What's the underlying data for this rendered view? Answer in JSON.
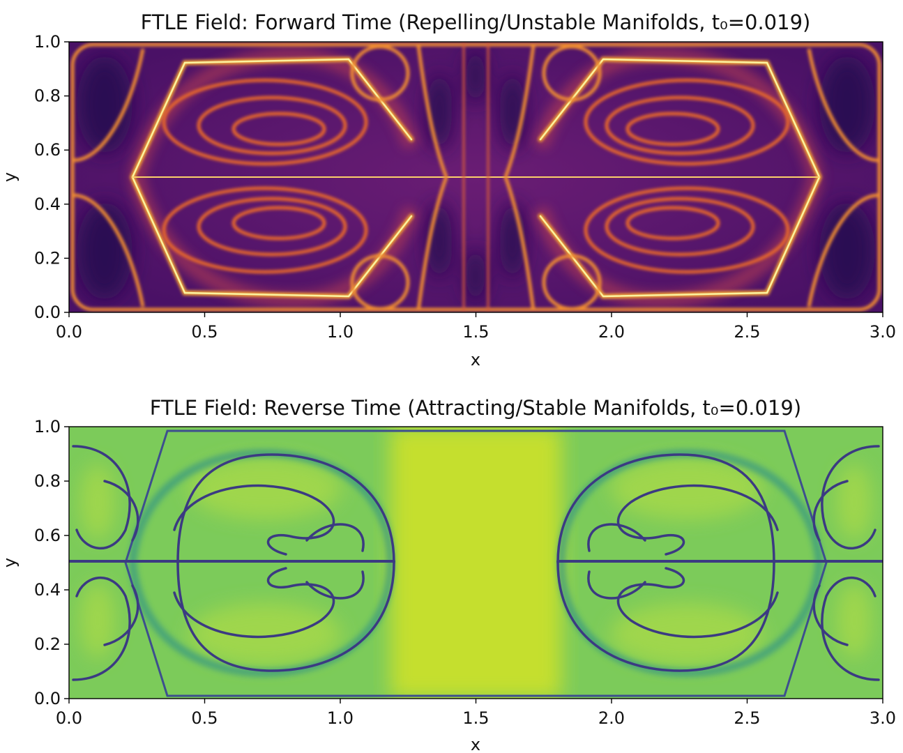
{
  "chart_data": [
    {
      "type": "heatmap",
      "title": "FTLE Field: Forward Time (Repelling/Unstable Manifolds, t₀=0.019)",
      "xlabel": "x",
      "ylabel": "y",
      "xlim": [
        0.0,
        3.0
      ],
      "ylim": [
        0.0,
        1.0
      ],
      "xticks": [
        "0.0",
        "0.5",
        "1.0",
        "1.5",
        "2.0",
        "2.5",
        "3.0"
      ],
      "yticks": [
        "0.0",
        "0.2",
        "0.4",
        "0.6",
        "0.8",
        "1.0"
      ],
      "colormap": "inferno",
      "colors": {
        "low": "#3b0f6f",
        "mid": "#c73e4c",
        "high": "#fcffa4"
      },
      "features": {
        "centerline_y": 0.5,
        "domain_boundary_curves": [
          0.25,
          2.75
        ],
        "vortex_centers": [
          [
            0.7,
            0.62
          ],
          [
            0.7,
            0.36
          ],
          [
            2.3,
            0.62
          ],
          [
            2.3,
            0.36
          ]
        ],
        "small_cells": [
          [
            1.15,
            0.88
          ],
          [
            1.15,
            0.12
          ],
          [
            1.85,
            0.88
          ],
          [
            1.85,
            0.12
          ],
          [
            1.38,
            0.88
          ],
          [
            1.62,
            0.88
          ],
          [
            1.38,
            0.12
          ],
          [
            1.62,
            0.12
          ]
        ]
      }
    },
    {
      "type": "heatmap",
      "title": "FTLE Field: Reverse Time (Attracting/Stable Manifolds, t₀=0.019)",
      "xlabel": "x",
      "ylabel": "y",
      "xlim": [
        0.0,
        3.0
      ],
      "ylim": [
        0.0,
        1.0
      ],
      "xticks": [
        "0.0",
        "0.5",
        "1.0",
        "1.5",
        "2.0",
        "2.5",
        "3.0"
      ],
      "yticks": [
        "0.0",
        "0.2",
        "0.4",
        "0.6",
        "0.8",
        "1.0"
      ],
      "colormap": "viridis",
      "colors": {
        "low": "#3b2f7a",
        "mid": "#3aa684",
        "high": "#cfe12a"
      },
      "features": {
        "centerline_y": 0.5,
        "arc_centers": [
          [
            0.73,
            0.5
          ],
          [
            2.27,
            0.5
          ]
        ],
        "arc_radius_x": 0.47,
        "arc_radius_y": 0.41,
        "vortex_centers": [
          [
            0.7,
            0.7
          ],
          [
            0.7,
            0.28
          ],
          [
            2.3,
            0.7
          ],
          [
            2.3,
            0.28
          ]
        ]
      }
    }
  ]
}
